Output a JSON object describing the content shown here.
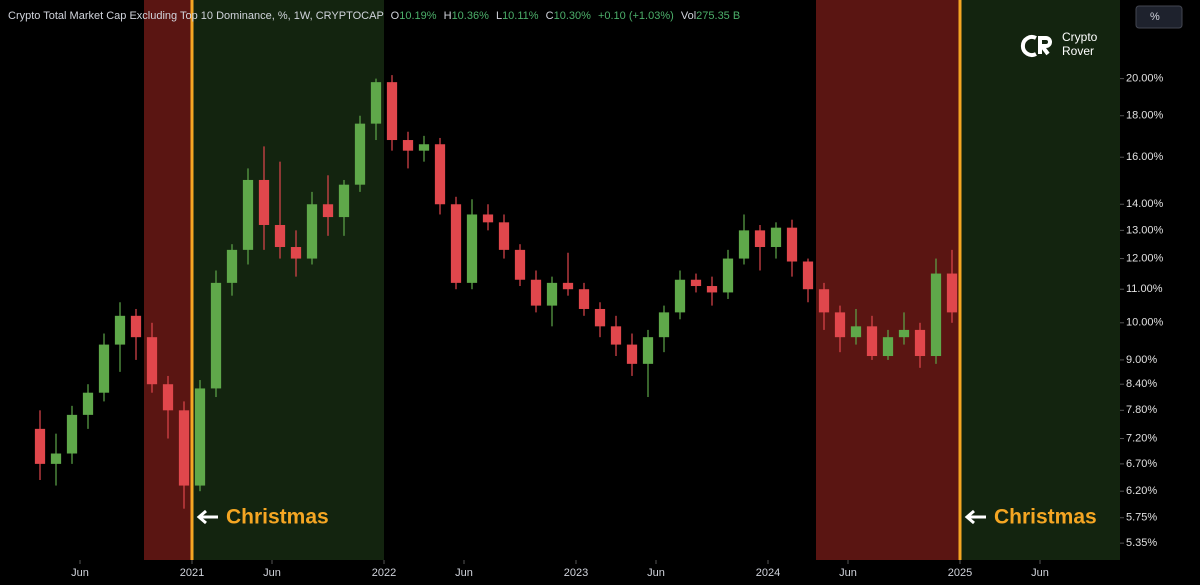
{
  "header": {
    "title": "Crypto Total Market Cap Excluding Top 10 Dominance, %, 1W, CRYPTOCAP",
    "o_label": "O",
    "o_value": "10.19%",
    "h_label": "H",
    "h_value": "10.36%",
    "l_label": "L",
    "l_value": "10.11%",
    "c_label": "C",
    "c_value": "10.30%",
    "change": "+0.10 (+1.03%)",
    "vol_label": "Vol",
    "vol_value": "275.35 B"
  },
  "logo": {
    "line1": "Crypto",
    "line2": "Rover"
  },
  "scale_button": "%",
  "chart_data": {
    "type": "candlestick",
    "log_scale": true,
    "up_color": "#5fa84a",
    "down_color": "#e0474c",
    "x": [
      "2020-03",
      "2020-04",
      "2020-05",
      "2020-06",
      "2020-07",
      "2020-08",
      "2020-09",
      "2020-10",
      "2020-11",
      "2020-12",
      "2021-01",
      "2021-02",
      "2021-03",
      "2021-04",
      "2021-05",
      "2021-06",
      "2021-07",
      "2021-08",
      "2021-09",
      "2021-10",
      "2021-11",
      "2021-12",
      "2022-01",
      "2022-02",
      "2022-03",
      "2022-04",
      "2022-05",
      "2022-06",
      "2022-07",
      "2022-08",
      "2022-09",
      "2022-10",
      "2022-11",
      "2022-12",
      "2023-01",
      "2023-02",
      "2023-03",
      "2023-04",
      "2023-05",
      "2023-06",
      "2023-07",
      "2023-08",
      "2023-09",
      "2023-10",
      "2023-11",
      "2023-12",
      "2024-01",
      "2024-02",
      "2024-03",
      "2024-04",
      "2024-05",
      "2024-06",
      "2024-07",
      "2024-08",
      "2024-09",
      "2024-10",
      "2024-11",
      "2024-12"
    ],
    "open": [
      7.4,
      6.7,
      6.9,
      7.7,
      8.2,
      9.4,
      10.2,
      9.6,
      8.4,
      7.8,
      6.3,
      8.3,
      11.2,
      12.3,
      15.0,
      13.2,
      12.4,
      12.0,
      14.0,
      13.5,
      14.8,
      17.6,
      19.8,
      16.8,
      16.3,
      16.6,
      14.0,
      11.2,
      13.6,
      13.3,
      12.3,
      11.3,
      10.5,
      11.2,
      11.0,
      10.4,
      9.9,
      9.4,
      8.9,
      9.6,
      10.3,
      11.3,
      11.1,
      10.9,
      12.0,
      13.0,
      12.4,
      13.1,
      11.9,
      11.0,
      10.3,
      9.6,
      9.9,
      9.1,
      9.6,
      9.8,
      9.1,
      11.5
    ],
    "high": [
      7.8,
      7.3,
      7.9,
      8.4,
      9.7,
      10.6,
      10.4,
      10.0,
      8.6,
      8.0,
      8.5,
      11.6,
      12.5,
      15.5,
      16.5,
      15.8,
      13.0,
      14.5,
      15.2,
      15.0,
      18.0,
      20.0,
      20.2,
      17.2,
      17.0,
      16.9,
      14.3,
      14.2,
      14.0,
      13.6,
      12.5,
      11.6,
      11.4,
      12.2,
      11.2,
      10.6,
      10.2,
      9.7,
      9.8,
      10.5,
      11.6,
      11.5,
      11.4,
      12.3,
      13.6,
      13.2,
      13.3,
      13.4,
      12.0,
      11.2,
      10.5,
      10.4,
      10.2,
      9.8,
      10.3,
      10.0,
      12.0,
      12.3
    ],
    "low": [
      6.4,
      6.3,
      6.7,
      7.4,
      8.0,
      8.7,
      9.0,
      8.2,
      7.2,
      5.9,
      6.2,
      8.1,
      10.8,
      11.8,
      12.3,
      12.0,
      11.4,
      11.8,
      12.8,
      12.8,
      14.5,
      16.8,
      16.3,
      15.5,
      15.8,
      13.6,
      11.0,
      11.0,
      13.0,
      12.0,
      11.1,
      10.3,
      9.9,
      10.8,
      10.2,
      9.6,
      9.1,
      8.6,
      8.1,
      9.2,
      10.1,
      10.9,
      10.5,
      10.7,
      11.8,
      11.6,
      12.0,
      11.4,
      10.6,
      9.8,
      9.2,
      9.4,
      9.0,
      9.0,
      9.4,
      8.8,
      8.9,
      10.0
    ],
    "close": [
      6.7,
      6.9,
      7.7,
      8.2,
      9.4,
      10.2,
      9.6,
      8.4,
      7.8,
      6.3,
      8.3,
      11.2,
      12.3,
      15.0,
      13.2,
      12.4,
      12.0,
      14.0,
      13.5,
      14.8,
      17.6,
      19.8,
      16.8,
      16.3,
      16.6,
      14.0,
      11.2,
      13.6,
      13.3,
      12.3,
      11.3,
      10.5,
      11.2,
      11.0,
      10.4,
      9.9,
      9.4,
      8.9,
      9.6,
      10.3,
      11.3,
      11.1,
      10.9,
      12.0,
      13.0,
      12.4,
      13.1,
      11.9,
      11.0,
      10.3,
      9.6,
      9.9,
      9.1,
      9.6,
      9.8,
      9.1,
      11.5,
      10.3
    ],
    "xlim": [
      "2020-01",
      "2025-10"
    ],
    "xticks": [
      {
        "value": "2020-06",
        "label": "Jun"
      },
      {
        "value": "2021-01",
        "label": "2021"
      },
      {
        "value": "2021-06",
        "label": "Jun"
      },
      {
        "value": "2022-01",
        "label": "2022"
      },
      {
        "value": "2022-06",
        "label": "Jun"
      },
      {
        "value": "2023-01",
        "label": "2023"
      },
      {
        "value": "2023-06",
        "label": "Jun"
      },
      {
        "value": "2024-01",
        "label": "2024"
      },
      {
        "value": "2024-06",
        "label": "Jun"
      },
      {
        "value": "2025-01",
        "label": "2025"
      },
      {
        "value": "2025-06",
        "label": "Jun"
      }
    ],
    "ylim": [
      5.1,
      25
    ],
    "yticks": [
      {
        "value": 20,
        "label": "20.00%"
      },
      {
        "value": 18,
        "label": "18.00%"
      },
      {
        "value": 16,
        "label": "16.00%"
      },
      {
        "value": 14,
        "label": "14.00%"
      },
      {
        "value": 13,
        "label": "13.00%"
      },
      {
        "value": 12,
        "label": "12.00%"
      },
      {
        "value": 11,
        "label": "11.00%"
      },
      {
        "value": 10,
        "label": "10.00%"
      },
      {
        "value": 9,
        "label": "9.00%"
      },
      {
        "value": 8.4,
        "label": "8.40%"
      },
      {
        "value": 7.8,
        "label": "7.80%"
      },
      {
        "value": 7.2,
        "label": "7.20%"
      },
      {
        "value": 6.7,
        "label": "6.70%"
      },
      {
        "value": 6.2,
        "label": "6.20%"
      },
      {
        "value": 5.75,
        "label": "5.75%"
      },
      {
        "value": 5.35,
        "label": "5.35%"
      }
    ],
    "shaded_ranges": [
      {
        "start": "2020-10",
        "end": "2020-12",
        "color": "#5a1512"
      },
      {
        "start": "2021-01",
        "end": "2021-12",
        "color": "#13240f"
      },
      {
        "start": "2024-04",
        "end": "2024-12",
        "color": "#5a1512"
      },
      {
        "start": "2025-01",
        "end": "2025-10",
        "color": "#13240f"
      }
    ],
    "markers": [
      {
        "x": "2020-12",
        "label": "Christmas",
        "color": "#f5a623"
      },
      {
        "x": "2024-12",
        "label": "Christmas",
        "color": "#f5a623"
      }
    ]
  }
}
